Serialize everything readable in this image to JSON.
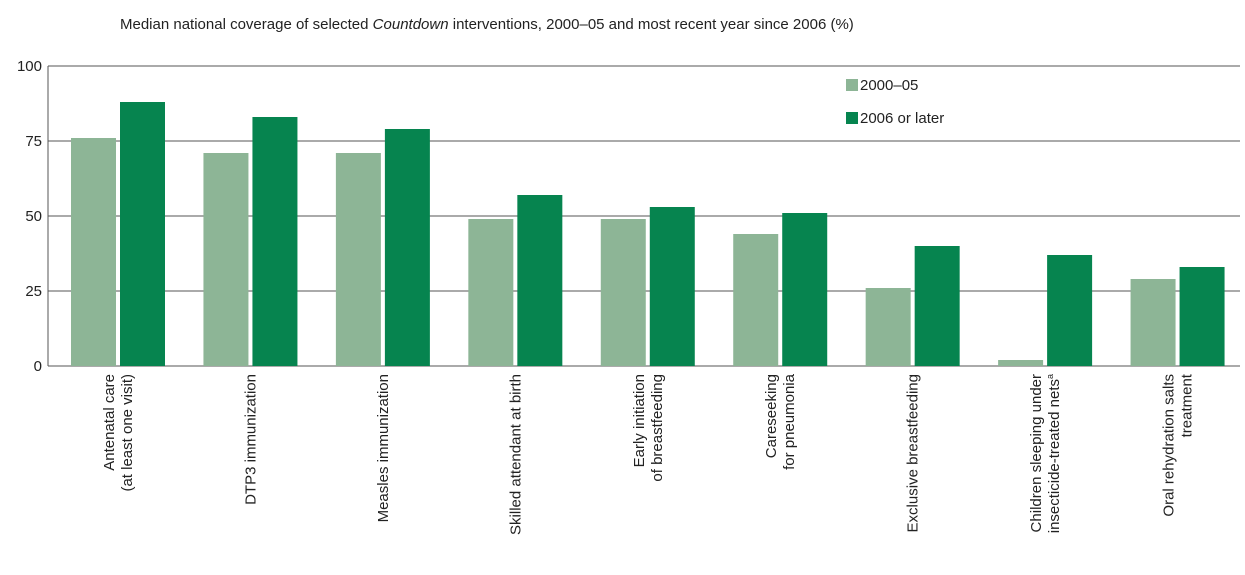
{
  "chart_data": {
    "type": "bar",
    "title_prefix": "Median national coverage of selected ",
    "title_italic": "Countdown",
    "title_suffix": " interventions, 2000–05 and most recent year since 2006 (%)",
    "ylim": [
      0,
      100
    ],
    "yticks": [
      "0",
      "25",
      "50",
      "75",
      "100"
    ],
    "grid": true,
    "legend_position": "top-right",
    "categories": [
      {
        "lines": [
          "Antenatal care",
          "(at least one visit)"
        ]
      },
      {
        "lines": [
          "DTP3 immunization"
        ]
      },
      {
        "lines": [
          "Measles immunization"
        ]
      },
      {
        "lines": [
          "Skilled attendant at birth"
        ]
      },
      {
        "lines": [
          "Early initiation",
          "of breastfeeding"
        ]
      },
      {
        "lines": [
          "Careseeking",
          "for pneumonia"
        ]
      },
      {
        "lines": [
          "Exclusive breastfeeding"
        ]
      },
      {
        "lines": [
          "Children sleeping under",
          "insecticide-treated nets"
        ],
        "superscript": "a"
      },
      {
        "lines": [
          "Oral rehydration salts",
          "treatment"
        ]
      }
    ],
    "series": [
      {
        "name": "2000–05",
        "color": "#8db596",
        "values": [
          76,
          71,
          71,
          49,
          49,
          44,
          26,
          2,
          29
        ]
      },
      {
        "name": "2006 or later",
        "color": "#06844f",
        "values": [
          88,
          83,
          79,
          57,
          53,
          51,
          40,
          37,
          33
        ]
      }
    ]
  }
}
